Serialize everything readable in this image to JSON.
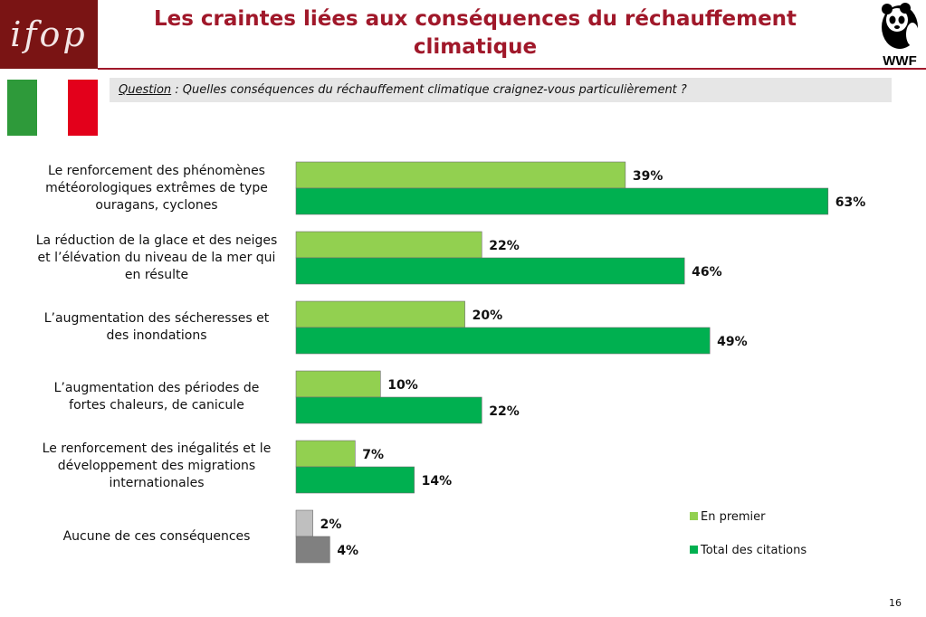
{
  "header": {
    "logo_left_text": "ifop",
    "title": "Les craintes liées aux conséquences du réchauffement climatique",
    "logo_right_text": "WWF"
  },
  "question": {
    "label": "Question",
    "text": " : Quelles conséquences du réchauffement climatique craignez-vous particulièrement ?"
  },
  "flag_colors": [
    "#2e9a3a",
    "#ffffff",
    "#e3001b"
  ],
  "colors": {
    "first": "#92d050",
    "total": "#00b050",
    "none_first": "#bfbfbf",
    "none_total": "#808080",
    "title": "#a0182a"
  },
  "chart_data": {
    "type": "bar",
    "orientation": "horizontal",
    "categories": [
      "Le renforcement des phénomènes météorologiques extrêmes de type ouragans, cyclones",
      "La réduction de la glace et des neiges et l’élévation du niveau de la mer qui en résulte",
      "L’augmentation des sécheresses et des inondations",
      "L’augmentation des périodes de fortes chaleurs, de canicule",
      "Le renforcement des inégalités et le développement des migrations internationales",
      "Aucune de ces conséquences"
    ],
    "series": [
      {
        "name": "En premier",
        "values": [
          39,
          22,
          20,
          10,
          7,
          2
        ],
        "labels": [
          "39%",
          "22%",
          "20%",
          "10%",
          "7%",
          "2%"
        ]
      },
      {
        "name": "Total des citations",
        "values": [
          63,
          46,
          49,
          22,
          14,
          4
        ],
        "labels": [
          "63%",
          "46%",
          "49%",
          "22%",
          "14%",
          "4%"
        ]
      }
    ],
    "unit": "%",
    "xlim": [
      0,
      70
    ],
    "legend_position": "bottom-right"
  },
  "page_number": "16"
}
